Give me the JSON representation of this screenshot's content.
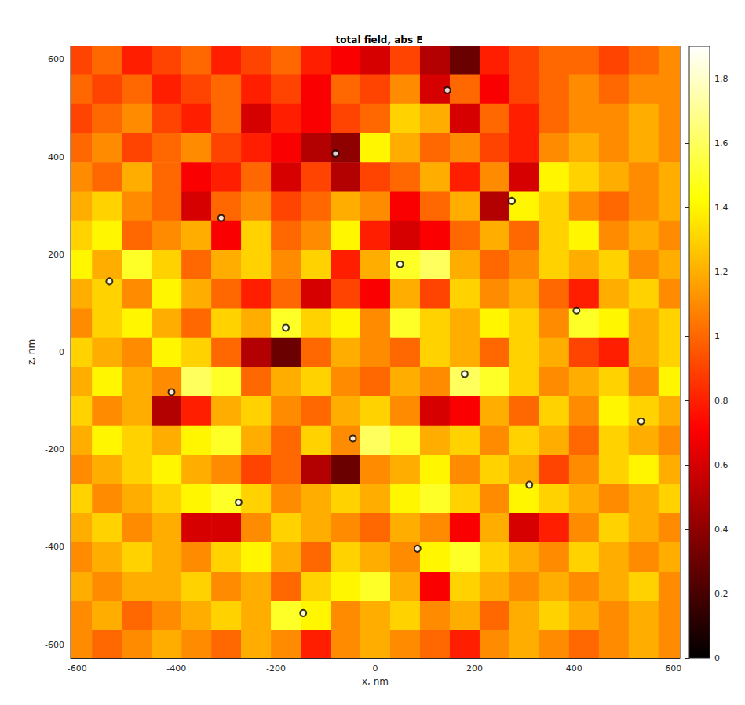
{
  "chart_data": {
    "type": "heatmap",
    "title": "total field, abs E",
    "x_label": "x, nm",
    "y_label": "z, nm",
    "xlim": [
      -613,
      613
    ],
    "ylim": [
      -627,
      627
    ],
    "xticks": [
      -600,
      -400,
      -200,
      0,
      200,
      400,
      600
    ],
    "yticks": [
      -600,
      -400,
      -200,
      0,
      200,
      400,
      600
    ],
    "grid": false,
    "heatmap": {
      "x": [
        -600,
        -540,
        -480,
        -420,
        -360,
        -300,
        -240,
        -180,
        -120,
        -60,
        0,
        60,
        120,
        180,
        240,
        300,
        360,
        420,
        480,
        540,
        600
      ],
      "y": [
        600,
        540,
        480,
        420,
        360,
        300,
        240,
        180,
        120,
        60,
        0,
        -60,
        -120,
        -180,
        -240,
        -300,
        -360,
        -420,
        -480,
        -540,
        -600
      ],
      "values": [
        [
          0.9,
          1.0,
          0.8,
          0.9,
          1.0,
          0.8,
          0.9,
          1.0,
          0.8,
          0.7,
          0.6,
          0.9,
          0.5,
          0.3,
          0.8,
          0.9,
          1.0,
          1.0,
          0.9,
          1.0,
          1.1
        ],
        [
          1.0,
          0.9,
          1.0,
          0.8,
          0.9,
          1.0,
          0.8,
          0.9,
          0.7,
          1.0,
          0.9,
          1.1,
          0.6,
          1.0,
          0.7,
          0.9,
          1.0,
          1.1,
          1.0,
          1.1,
          1.1
        ],
        [
          0.9,
          1.0,
          1.1,
          0.9,
          0.8,
          1.0,
          0.6,
          0.8,
          0.7,
          0.9,
          1.0,
          1.3,
          1.2,
          0.6,
          1.0,
          0.8,
          1.0,
          1.1,
          1.1,
          1.2,
          1.1
        ],
        [
          1.0,
          1.1,
          0.9,
          1.0,
          1.1,
          0.9,
          0.8,
          0.7,
          0.5,
          0.4,
          1.4,
          1.2,
          1.0,
          1.1,
          0.9,
          0.8,
          1.1,
          1.2,
          1.1,
          1.2,
          1.1
        ],
        [
          1.1,
          1.0,
          1.2,
          1.0,
          0.7,
          0.8,
          1.0,
          0.6,
          0.9,
          0.5,
          0.9,
          1.0,
          1.2,
          0.8,
          1.1,
          0.6,
          1.4,
          1.3,
          1.2,
          1.1,
          1.2
        ],
        [
          1.2,
          1.3,
          1.1,
          1.0,
          0.6,
          1.0,
          1.1,
          0.9,
          1.0,
          1.2,
          1.1,
          0.7,
          1.0,
          1.2,
          0.5,
          1.4,
          1.3,
          1.1,
          1.0,
          1.1,
          1.2
        ],
        [
          1.3,
          1.4,
          1.0,
          1.1,
          1.2,
          0.7,
          1.3,
          1.0,
          1.1,
          1.4,
          0.8,
          0.6,
          0.7,
          1.0,
          1.2,
          1.0,
          1.3,
          1.4,
          1.1,
          1.2,
          1.1
        ],
        [
          1.4,
          1.2,
          1.5,
          1.3,
          1.0,
          1.2,
          1.3,
          1.1,
          1.3,
          0.8,
          1.2,
          1.5,
          1.6,
          1.2,
          1.0,
          1.1,
          1.3,
          1.2,
          1.3,
          1.1,
          1.2
        ],
        [
          1.2,
          1.3,
          1.1,
          1.4,
          1.2,
          1.0,
          0.8,
          1.0,
          0.6,
          0.9,
          0.7,
          1.2,
          0.9,
          1.3,
          1.1,
          1.2,
          1.0,
          0.8,
          1.2,
          1.3,
          1.1
        ],
        [
          1.1,
          1.3,
          1.4,
          1.2,
          1.0,
          1.3,
          1.2,
          1.5,
          1.3,
          1.4,
          1.1,
          1.5,
          1.3,
          1.2,
          1.4,
          1.3,
          1.1,
          1.5,
          1.4,
          1.2,
          1.3
        ],
        [
          1.3,
          1.2,
          1.1,
          1.4,
          1.3,
          1.0,
          0.5,
          0.3,
          1.0,
          1.2,
          1.1,
          1.0,
          1.3,
          1.2,
          1.0,
          1.3,
          1.2,
          0.9,
          0.8,
          1.2,
          1.3
        ],
        [
          1.2,
          1.4,
          1.2,
          1.1,
          1.6,
          1.5,
          1.0,
          1.2,
          1.3,
          1.1,
          1.0,
          1.2,
          1.1,
          1.6,
          1.5,
          1.3,
          1.1,
          1.2,
          1.3,
          1.1,
          1.4
        ],
        [
          1.3,
          1.1,
          1.2,
          0.5,
          0.8,
          1.2,
          1.3,
          1.1,
          1.0,
          1.2,
          1.3,
          1.1,
          0.6,
          0.7,
          1.2,
          1.0,
          1.3,
          1.1,
          1.4,
          1.3,
          1.2
        ],
        [
          1.2,
          1.4,
          1.3,
          1.2,
          1.4,
          1.5,
          1.2,
          1.0,
          1.3,
          1.1,
          1.6,
          1.5,
          1.2,
          1.3,
          1.1,
          1.3,
          1.2,
          1.0,
          1.3,
          1.2,
          1.1
        ],
        [
          1.1,
          1.2,
          1.3,
          1.4,
          1.2,
          1.1,
          0.9,
          1.0,
          0.5,
          0.3,
          1.1,
          1.2,
          1.4,
          1.1,
          1.3,
          1.2,
          0.9,
          1.1,
          1.3,
          1.4,
          1.2
        ],
        [
          1.3,
          1.1,
          1.2,
          1.3,
          1.4,
          1.5,
          1.3,
          1.1,
          1.2,
          1.3,
          1.2,
          1.4,
          1.5,
          1.3,
          1.1,
          1.4,
          1.3,
          1.2,
          1.1,
          1.2,
          1.3
        ],
        [
          1.2,
          1.3,
          1.1,
          1.2,
          0.6,
          0.6,
          1.1,
          1.3,
          1.2,
          1.1,
          1.0,
          1.2,
          1.1,
          0.7,
          1.2,
          0.6,
          0.8,
          1.1,
          1.3,
          1.2,
          1.1
        ],
        [
          1.1,
          1.2,
          1.3,
          1.2,
          1.1,
          1.3,
          1.4,
          1.2,
          1.0,
          1.3,
          1.2,
          1.1,
          1.4,
          1.5,
          1.3,
          1.2,
          1.1,
          1.3,
          1.2,
          1.1,
          1.2
        ],
        [
          1.2,
          1.1,
          1.2,
          1.2,
          1.3,
          1.1,
          1.2,
          1.0,
          1.3,
          1.4,
          1.5,
          1.2,
          0.7,
          1.3,
          1.2,
          1.1,
          1.2,
          1.1,
          1.2,
          1.3,
          1.1
        ],
        [
          1.1,
          1.2,
          1.0,
          1.1,
          1.2,
          1.3,
          1.2,
          1.5,
          1.4,
          1.1,
          1.2,
          1.3,
          1.1,
          1.2,
          1.0,
          1.2,
          1.3,
          1.2,
          1.1,
          1.2,
          1.1
        ],
        [
          1.1,
          1.0,
          1.1,
          1.2,
          1.1,
          1.0,
          1.2,
          1.1,
          0.8,
          1.1,
          1.2,
          1.1,
          1.0,
          0.8,
          1.1,
          1.2,
          1.1,
          1.0,
          1.1,
          1.2,
          1.1
        ]
      ]
    },
    "colorbar": {
      "lim": [
        0,
        1.9
      ],
      "ticks": [
        0,
        0.2,
        0.4,
        0.6,
        0.8,
        1,
        1.2,
        1.4,
        1.6,
        1.8
      ]
    },
    "points": {
      "x": [
        145,
        -80,
        275,
        -310,
        50,
        -535,
        -180,
        405,
        180,
        -410,
        535,
        -45,
        310,
        -275,
        85,
        -145
      ],
      "y": [
        537,
        407,
        310,
        275,
        180,
        145,
        50,
        85,
        -45,
        -82,
        -142,
        -177,
        -272,
        -308,
        -403,
        -535
      ],
      "marker": "circle",
      "color": "#000000"
    }
  }
}
